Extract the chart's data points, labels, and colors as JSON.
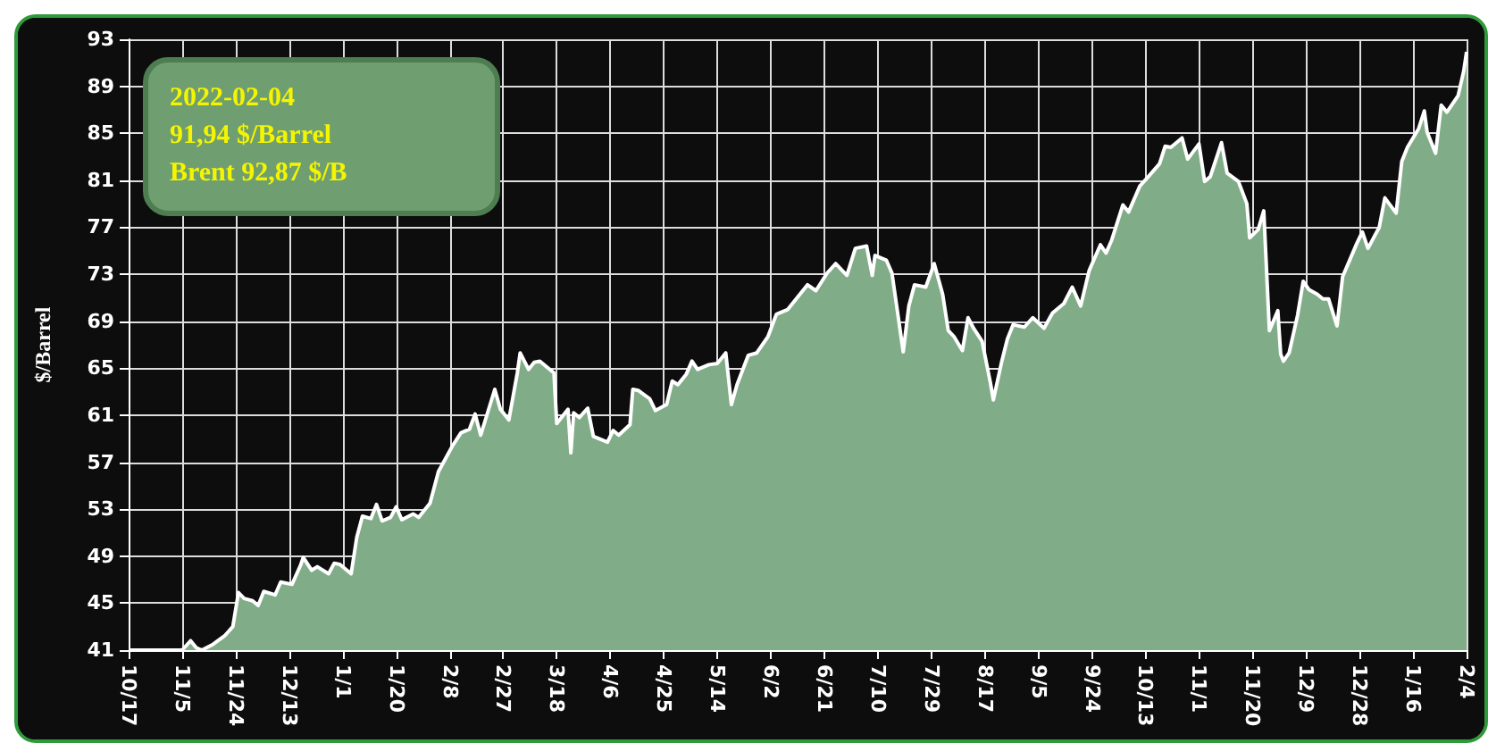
{
  "chart_data": {
    "type": "area",
    "ylabel": "$/Barrel",
    "annotations": [
      "2022-02-04",
      "91,94 $/Barrel",
      "Brent 92,87 $/B"
    ],
    "xlim": [
      "2020-10-17",
      "2022-02-04"
    ],
    "xticks": [
      {
        "value": "2020-10-17",
        "label": "10/17"
      },
      {
        "value": "2020-11-05",
        "label": "11/5"
      },
      {
        "value": "2020-11-24",
        "label": "11/24"
      },
      {
        "value": "2020-12-13",
        "label": "12/13"
      },
      {
        "value": "2021-01-01",
        "label": "1/1"
      },
      {
        "value": "2021-01-20",
        "label": "1/20"
      },
      {
        "value": "2021-02-08",
        "label": "2/8"
      },
      {
        "value": "2021-02-27",
        "label": "2/27"
      },
      {
        "value": "2021-03-18",
        "label": "3/18"
      },
      {
        "value": "2021-04-06",
        "label": "4/6"
      },
      {
        "value": "2021-04-25",
        "label": "4/25"
      },
      {
        "value": "2021-05-14",
        "label": "5/14"
      },
      {
        "value": "2021-06-02",
        "label": "6/2"
      },
      {
        "value": "2021-06-21",
        "label": "6/21"
      },
      {
        "value": "2021-07-10",
        "label": "7/10"
      },
      {
        "value": "2021-07-29",
        "label": "7/29"
      },
      {
        "value": "2021-08-17",
        "label": "8/17"
      },
      {
        "value": "2021-09-05",
        "label": "9/5"
      },
      {
        "value": "2021-09-24",
        "label": "9/24"
      },
      {
        "value": "2021-10-13",
        "label": "10/13"
      },
      {
        "value": "2021-11-01",
        "label": "11/1"
      },
      {
        "value": "2021-11-20",
        "label": "11/20"
      },
      {
        "value": "2021-12-09",
        "label": "12/9"
      },
      {
        "value": "2021-12-28",
        "label": "12/28"
      },
      {
        "value": "2022-01-16",
        "label": "1/16"
      },
      {
        "value": "2022-02-04",
        "label": "2/4"
      }
    ],
    "ylim": [
      41,
      93
    ],
    "yticks": [
      41,
      45,
      49,
      53,
      57,
      61,
      65,
      69,
      73,
      77,
      81,
      85,
      89,
      93
    ],
    "grid": true,
    "x": [
      "2020-10-17",
      "2020-11-01",
      "2020-11-05",
      "2020-11-08",
      "2020-11-10",
      "2020-11-12",
      "2020-11-16",
      "2020-11-20",
      "2020-11-23",
      "2020-11-25",
      "2020-11-27",
      "2020-11-30",
      "2020-12-02",
      "2020-12-04",
      "2020-12-08",
      "2020-12-10",
      "2020-12-14",
      "2020-12-17",
      "2020-12-18",
      "2020-12-21",
      "2020-12-23",
      "2020-12-27",
      "2020-12-29",
      "2020-12-31",
      "2021-01-04",
      "2021-01-06",
      "2021-01-08",
      "2021-01-11",
      "2021-01-13",
      "2021-01-15",
      "2021-01-18",
      "2021-01-20",
      "2021-01-22",
      "2021-01-26",
      "2021-01-28",
      "2021-02-01",
      "2021-02-04",
      "2021-02-09",
      "2021-02-12",
      "2021-02-15",
      "2021-02-17",
      "2021-02-19",
      "2021-02-24",
      "2021-02-26",
      "2021-03-01",
      "2021-03-04",
      "2021-03-05",
      "2021-03-08",
      "2021-03-10",
      "2021-03-12",
      "2021-03-17",
      "2021-03-18",
      "2021-03-22",
      "2021-03-23",
      "2021-03-24",
      "2021-03-26",
      "2021-03-29",
      "2021-03-31",
      "2021-04-05",
      "2021-04-07",
      "2021-04-09",
      "2021-04-13",
      "2021-04-14",
      "2021-04-16",
      "2021-04-20",
      "2021-04-22",
      "2021-04-26",
      "2021-04-28",
      "2021-04-30",
      "2021-05-03",
      "2021-05-05",
      "2021-05-07",
      "2021-05-11",
      "2021-05-14",
      "2021-05-17",
      "2021-05-19",
      "2021-05-21",
      "2021-05-25",
      "2021-05-28",
      "2021-06-01",
      "2021-06-04",
      "2021-06-08",
      "2021-06-11",
      "2021-06-15",
      "2021-06-18",
      "2021-06-22",
      "2021-06-25",
      "2021-06-29",
      "2021-07-02",
      "2021-07-06",
      "2021-07-08",
      "2021-07-09",
      "2021-07-13",
      "2021-07-15",
      "2021-07-19",
      "2021-07-21",
      "2021-07-23",
      "2021-07-27",
      "2021-07-30",
      "2021-08-02",
      "2021-08-04",
      "2021-08-06",
      "2021-08-09",
      "2021-08-11",
      "2021-08-13",
      "2021-08-16",
      "2021-08-19",
      "2021-08-20",
      "2021-08-23",
      "2021-08-25",
      "2021-08-27",
      "2021-08-31",
      "2021-09-03",
      "2021-09-07",
      "2021-09-10",
      "2021-09-14",
      "2021-09-17",
      "2021-09-20",
      "2021-09-23",
      "2021-09-27",
      "2021-09-29",
      "2021-10-01",
      "2021-10-05",
      "2021-10-07",
      "2021-10-11",
      "2021-10-14",
      "2021-10-18",
      "2021-10-20",
      "2021-10-22",
      "2021-10-26",
      "2021-10-28",
      "2021-11-01",
      "2021-11-03",
      "2021-11-05",
      "2021-11-09",
      "2021-11-11",
      "2021-11-15",
      "2021-11-18",
      "2021-11-19",
      "2021-11-22",
      "2021-11-24",
      "2021-11-26",
      "2021-11-29",
      "2021-11-30",
      "2021-12-01",
      "2021-12-03",
      "2021-12-06",
      "2021-12-08",
      "2021-12-10",
      "2021-12-13",
      "2021-12-15",
      "2021-12-17",
      "2021-12-20",
      "2021-12-22",
      "2021-12-27",
      "2021-12-29",
      "2021-12-31",
      "2022-01-04",
      "2022-01-06",
      "2022-01-10",
      "2022-01-12",
      "2022-01-14",
      "2022-01-18",
      "2022-01-20",
      "2022-01-21",
      "2022-01-24",
      "2022-01-26",
      "2022-01-28",
      "2022-02-01",
      "2022-02-03",
      "2022-02-04"
    ],
    "series": [
      {
        "color": "#80ad87",
        "values": [
          41,
          41,
          41,
          41.8,
          41.2,
          41,
          41.5,
          42.2,
          43,
          45.9,
          45.4,
          45.2,
          44.8,
          46,
          45.7,
          46.8,
          46.6,
          48.2,
          48.9,
          47.8,
          48.1,
          47.5,
          48.4,
          48.3,
          47.5,
          50.6,
          52.4,
          52.2,
          53.4,
          52,
          52.3,
          53.2,
          52.1,
          52.6,
          52.3,
          53.5,
          56.2,
          58.4,
          59.5,
          59.8,
          61.1,
          59.3,
          63.2,
          61.5,
          60.6,
          64.6,
          66.3,
          64.9,
          65.5,
          65.6,
          64.6,
          60.3,
          61.5,
          57.8,
          61.2,
          60.8,
          61.6,
          59.2,
          58.7,
          59.7,
          59.3,
          60.2,
          63.2,
          63.1,
          62.4,
          61.4,
          61.9,
          63.9,
          63.6,
          64.5,
          65.6,
          64.9,
          65.3,
          65.4,
          66.3,
          61.9,
          63.6,
          66.1,
          66.3,
          67.7,
          69.6,
          70,
          70.9,
          72.1,
          71.6,
          73.1,
          73.9,
          72.9,
          75.2,
          75.4,
          72.9,
          74.6,
          74.2,
          73.1,
          66.4,
          70.3,
          72.1,
          71.9,
          73.9,
          71.3,
          68.2,
          67.7,
          66.5,
          69.3,
          68.4,
          67.3,
          63.7,
          62.3,
          65.6,
          67.5,
          68.7,
          68.5,
          69.3,
          68.4,
          69.7,
          70.5,
          71.9,
          70.3,
          73.3,
          75.5,
          74.8,
          75.9,
          78.9,
          78.3,
          80.5,
          81.3,
          82.4,
          83.9,
          83.8,
          84.6,
          82.8,
          84.1,
          80.9,
          81.3,
          84.2,
          81.6,
          80.9,
          79,
          76.1,
          76.8,
          78.4,
          68.2,
          69.9,
          66.2,
          65.6,
          66.3,
          69.5,
          72.4,
          71.7,
          71.3,
          70.9,
          70.9,
          68.6,
          72.8,
          75.6,
          76.6,
          75.2,
          77,
          79.5,
          78.2,
          82.6,
          83.8,
          85.4,
          86.9,
          85.1,
          83.3,
          87.4,
          86.8,
          88.2,
          90.3,
          91.94
        ]
      }
    ]
  }
}
